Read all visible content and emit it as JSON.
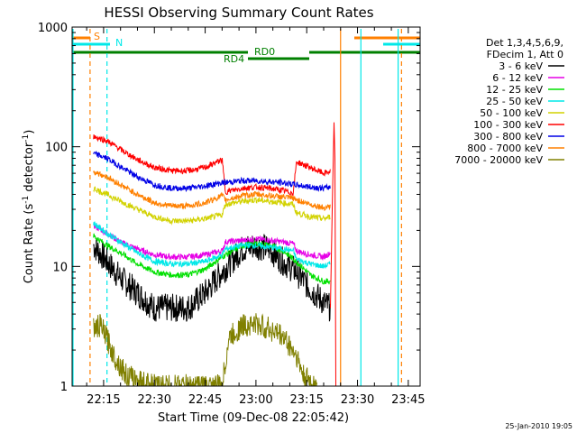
{
  "chart_data": {
    "type": "line",
    "title": "HESSI Observing Summary Count Rates",
    "xlabel": "Start Time (09-Dec-08 22:05:42)",
    "ylabel_main": "Count Rate (s",
    "ylabel_sup1": "-1",
    "ylabel_mid": " detector",
    "ylabel_sup2": "-1",
    "ylabel_end": ")",
    "y_scale": "log",
    "xlim": [
      "22:05:42",
      "23:48:30"
    ],
    "ylim": [
      1,
      1000
    ],
    "x_ticks": [
      "22:15",
      "22:30",
      "22:45",
      "23:00",
      "23:15",
      "23:30",
      "23:45"
    ],
    "y_ticks": [
      1,
      10,
      100,
      1000
    ],
    "y_tick_labels": [
      "1",
      "10",
      "100",
      "1000"
    ],
    "legend_placement": "top-right",
    "legend_header": [
      "Det 1,3,4,5,6,9,",
      "FDecim 1, Att 0"
    ],
    "series": [
      {
        "name": "3 - 6 keV",
        "color": "#000000",
        "points": [
          [
            "22:12",
            15
          ],
          [
            "22:16",
            11
          ],
          [
            "22:20",
            8
          ],
          [
            "22:25",
            6
          ],
          [
            "22:30",
            4.5
          ],
          [
            "22:35",
            4.5
          ],
          [
            "22:40",
            4.5
          ],
          [
            "22:45",
            6
          ],
          [
            "22:50",
            9
          ],
          [
            "22:56",
            14
          ],
          [
            "23:00",
            15
          ],
          [
            "23:04",
            14
          ],
          [
            "23:08",
            11
          ],
          [
            "23:12",
            9
          ],
          [
            "23:16",
            6.5
          ],
          [
            "23:20",
            5
          ],
          [
            "23:22",
            4.5
          ]
        ]
      },
      {
        "name": "6 - 12 keV",
        "color": "#e600e6",
        "points": [
          [
            "22:12",
            22
          ],
          [
            "22:16",
            19
          ],
          [
            "22:20",
            16
          ],
          [
            "22:25",
            14
          ],
          [
            "22:30",
            12.5
          ],
          [
            "22:35",
            12
          ],
          [
            "22:40",
            12
          ],
          [
            "22:45",
            12.5
          ],
          [
            "22:50",
            13.5
          ],
          [
            "22:51",
            16
          ],
          [
            "22:56",
            16.5
          ],
          [
            "23:00",
            17
          ],
          [
            "23:04",
            16.5
          ],
          [
            "23:08",
            16
          ],
          [
            "23:11",
            15.5
          ],
          [
            "23:12",
            13.5
          ],
          [
            "23:16",
            12.5
          ],
          [
            "23:20",
            12
          ],
          [
            "23:22",
            13
          ]
        ]
      },
      {
        "name": "12 - 25 keV",
        "color": "#00e000",
        "points": [
          [
            "22:12",
            18
          ],
          [
            "22:16",
            15
          ],
          [
            "22:20",
            13
          ],
          [
            "22:25",
            10.5
          ],
          [
            "22:30",
            9
          ],
          [
            "22:35",
            8.5
          ],
          [
            "22:40",
            8.5
          ],
          [
            "22:45",
            9.5
          ],
          [
            "22:50",
            12
          ],
          [
            "22:56",
            15
          ],
          [
            "23:00",
            15.5
          ],
          [
            "23:04",
            15
          ],
          [
            "23:08",
            13.5
          ],
          [
            "23:12",
            11
          ],
          [
            "23:16",
            8.5
          ],
          [
            "23:20",
            7.5
          ],
          [
            "23:22",
            7.5
          ]
        ]
      },
      {
        "name": "25 - 50 keV",
        "color": "#00e8e8",
        "points": [
          [
            "22:12",
            23
          ],
          [
            "22:16",
            19
          ],
          [
            "22:20",
            16
          ],
          [
            "22:25",
            13
          ],
          [
            "22:30",
            11
          ],
          [
            "22:35",
            10.5
          ],
          [
            "22:40",
            10.5
          ],
          [
            "22:45",
            11
          ],
          [
            "22:50",
            12.5
          ],
          [
            "22:51",
            14
          ],
          [
            "22:56",
            15
          ],
          [
            "23:00",
            15
          ],
          [
            "23:04",
            14.5
          ],
          [
            "23:08",
            14
          ],
          [
            "23:11",
            13.5
          ],
          [
            "23:12",
            11.5
          ],
          [
            "23:16",
            10.5
          ],
          [
            "23:20",
            10
          ],
          [
            "23:22",
            10.5
          ]
        ]
      },
      {
        "name": "50 - 100 keV",
        "color": "#d2d200",
        "points": [
          [
            "22:12",
            45
          ],
          [
            "22:16",
            40
          ],
          [
            "22:20",
            35
          ],
          [
            "22:25",
            30
          ],
          [
            "22:30",
            26
          ],
          [
            "22:35",
            24
          ],
          [
            "22:40",
            24
          ],
          [
            "22:45",
            25
          ],
          [
            "22:50",
            27
          ],
          [
            "22:51",
            33
          ],
          [
            "22:56",
            35
          ],
          [
            "23:00",
            36
          ],
          [
            "23:04",
            35
          ],
          [
            "23:08",
            34
          ],
          [
            "23:11",
            33
          ],
          [
            "23:12",
            28
          ],
          [
            "23:16",
            26
          ],
          [
            "23:20",
            25
          ],
          [
            "23:22",
            26
          ]
        ]
      },
      {
        "name": "100 - 300 keV",
        "color": "#ff0000",
        "points": [
          [
            "22:12",
            122
          ],
          [
            "22:16",
            112
          ],
          [
            "22:20",
            95
          ],
          [
            "22:25",
            78
          ],
          [
            "22:30",
            67
          ],
          [
            "22:35",
            63
          ],
          [
            "22:40",
            63
          ],
          [
            "22:45",
            67
          ],
          [
            "22:50",
            78
          ],
          [
            "22:51",
            42
          ],
          [
            "22:56",
            45
          ],
          [
            "23:00",
            46
          ],
          [
            "23:04",
            45
          ],
          [
            "23:08",
            43
          ],
          [
            "23:11",
            41
          ],
          [
            "23:12",
            75
          ],
          [
            "23:16",
            67
          ],
          [
            "23:20",
            60
          ],
          [
            "23:22",
            62
          ]
        ]
      },
      {
        "name": "300 - 800 keV",
        "color": "#0000e6",
        "points": [
          [
            "22:12",
            88
          ],
          [
            "22:16",
            80
          ],
          [
            "22:20",
            68
          ],
          [
            "22:25",
            56
          ],
          [
            "22:30",
            48
          ],
          [
            "22:35",
            45
          ],
          [
            "22:40",
            45
          ],
          [
            "22:45",
            47
          ],
          [
            "22:50",
            50
          ],
          [
            "22:56",
            52
          ],
          [
            "23:00",
            52
          ],
          [
            "23:04",
            51
          ],
          [
            "23:08",
            50
          ],
          [
            "23:12",
            48
          ],
          [
            "23:16",
            46
          ],
          [
            "23:20",
            45
          ],
          [
            "23:22",
            46
          ]
        ]
      },
      {
        "name": "800 - 7000 keV",
        "color": "#ff8000",
        "points": [
          [
            "22:12",
            62
          ],
          [
            "22:16",
            56
          ],
          [
            "22:20",
            48
          ],
          [
            "22:25",
            40
          ],
          [
            "22:30",
            34
          ],
          [
            "22:35",
            32
          ],
          [
            "22:40",
            32
          ],
          [
            "22:45",
            34
          ],
          [
            "22:50",
            39
          ],
          [
            "22:51",
            36
          ],
          [
            "22:56",
            39
          ],
          [
            "23:00",
            40
          ],
          [
            "23:04",
            39
          ],
          [
            "23:08",
            38
          ],
          [
            "23:11",
            37
          ],
          [
            "23:12",
            36
          ],
          [
            "23:16",
            33
          ],
          [
            "23:20",
            31
          ],
          [
            "23:22",
            32
          ]
        ]
      },
      {
        "name": "7000 - 20000 keV",
        "color": "#808000",
        "points": [
          [
            "22:12",
            3
          ],
          [
            "22:14",
            3.2
          ],
          [
            "22:16",
            2.5
          ],
          [
            "22:18",
            1.8
          ],
          [
            "22:22",
            1.2
          ],
          [
            "22:30",
            1
          ],
          [
            "22:50",
            1
          ],
          [
            "22:52",
            2.5
          ],
          [
            "22:56",
            3.2
          ],
          [
            "23:00",
            3.3
          ],
          [
            "23:04",
            3
          ],
          [
            "23:08",
            2.6
          ],
          [
            "23:12",
            1.8
          ],
          [
            "23:14",
            1.2
          ],
          [
            "23:18",
            1
          ]
        ]
      }
    ],
    "annotations": {
      "flags": [
        {
          "label": "S",
          "color": "#ff8000"
        },
        {
          "label": "N",
          "color": "#00e8e8"
        },
        {
          "label": "RD0",
          "color": "#008000"
        },
        {
          "label": "RD4",
          "color": "#008000"
        }
      ],
      "vlines": [
        {
          "time": "22:05:42",
          "color": "#00e8e8",
          "style": "solid"
        },
        {
          "time": "22:11:00",
          "color": "#ff8000",
          "style": "dashed"
        },
        {
          "time": "22:16:00",
          "color": "#00e8e8",
          "style": "dashed"
        },
        {
          "time": "23:25:00",
          "color": "#ff8000",
          "style": "solid"
        },
        {
          "time": "23:31:00",
          "color": "#00e8e8",
          "style": "solid"
        },
        {
          "time": "23:42:00",
          "color": "#00e8e8",
          "style": "solid"
        },
        {
          "time": "23:43:00",
          "color": "#ff8000",
          "style": "dashed"
        }
      ]
    },
    "timestamp": "25-Jan-2010 19:05"
  }
}
